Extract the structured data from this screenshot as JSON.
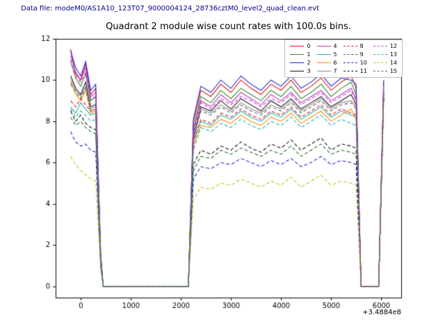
{
  "header": {
    "text": "Data file: modeM0/AS1A10_123T07_9000004124_28736cztM0_level2_quad_clean.evt"
  },
  "chart_data": {
    "type": "line",
    "title": "Quadrant 2 module wise count rates with 100.0s bins.",
    "xlabel": "",
    "ylabel": "",
    "x_offset": "+3.4884e8",
    "xlim": [
      -500,
      6400
    ],
    "ylim": [
      -0.55,
      12
    ],
    "x_ticks": [
      0,
      1000,
      2000,
      3000,
      4000,
      5000,
      6000
    ],
    "y_ticks": [
      0,
      2,
      4,
      6,
      8,
      10,
      12
    ],
    "grid": false,
    "legend_position": "upper right",
    "x": [
      -200,
      -100,
      0,
      100,
      200,
      300,
      400,
      450,
      2150,
      2250,
      2400,
      2600,
      2800,
      3000,
      3200,
      3400,
      3600,
      3800,
      4000,
      4200,
      4400,
      4600,
      4800,
      5000,
      5200,
      5400,
      5500,
      5600,
      5950,
      6050
    ],
    "series": [
      {
        "name": "0",
        "color": "#e3120b",
        "dash": false,
        "values": [
          11.5,
          10.3,
          10.0,
          10.8,
          9.3,
          9.6,
          1.5,
          0,
          0,
          7.9,
          9.5,
          9.2,
          9.8,
          9.4,
          10.0,
          9.6,
          9.3,
          9.8,
          9.5,
          10.0,
          9.4,
          9.7,
          10.1,
          9.5,
          9.9,
          10.2,
          9.6,
          0,
          0,
          9.9
        ]
      },
      {
        "name": "1",
        "color": "#2e8b2e",
        "dash": false,
        "values": [
          10.9,
          10.1,
          9.7,
          10.3,
          9.0,
          9.2,
          1.4,
          0,
          0,
          7.6,
          9.2,
          8.9,
          9.5,
          9.1,
          9.6,
          9.3,
          9.0,
          9.5,
          9.2,
          9.7,
          9.1,
          9.4,
          9.8,
          9.2,
          9.6,
          9.9,
          9.3,
          0,
          0,
          9.6
        ]
      },
      {
        "name": "2",
        "color": "#2222dd",
        "dash": false,
        "values": [
          11.4,
          10.6,
          10.2,
          10.9,
          9.5,
          9.8,
          1.6,
          0,
          0,
          8.1,
          9.7,
          9.4,
          10.0,
          9.6,
          10.2,
          9.8,
          9.5,
          10.0,
          9.7,
          10.2,
          9.6,
          9.9,
          10.3,
          9.7,
          10.1,
          10.0,
          9.8,
          0,
          0,
          10.0
        ]
      },
      {
        "name": "3",
        "color": "#111111",
        "dash": false,
        "values": [
          10.2,
          9.6,
          9.3,
          9.9,
          8.7,
          8.8,
          1.3,
          0,
          0,
          7.2,
          8.7,
          8.5,
          9.0,
          8.6,
          9.1,
          8.8,
          8.5,
          9.0,
          8.7,
          9.1,
          8.6,
          8.9,
          9.2,
          8.7,
          9.0,
          9.3,
          8.8,
          0,
          0,
          9.4
        ]
      },
      {
        "name": "4",
        "color": "#c232c2",
        "dash": false,
        "values": [
          11.2,
          10.4,
          10.0,
          10.6,
          9.2,
          9.4,
          1.4,
          0,
          0,
          7.5,
          9.0,
          8.7,
          9.3,
          8.9,
          9.4,
          9.1,
          8.8,
          9.3,
          9.0,
          9.4,
          8.9,
          9.2,
          9.5,
          9.0,
          9.3,
          9.6,
          9.1,
          0,
          0,
          9.7
        ]
      },
      {
        "name": "5",
        "color": "#20b2aa",
        "dash": false,
        "values": [
          8.7,
          8.4,
          8.9,
          8.6,
          8.3,
          8.4,
          1.2,
          0,
          0,
          7.0,
          8.0,
          7.8,
          8.3,
          8.1,
          8.5,
          8.2,
          8.0,
          8.4,
          8.2,
          8.6,
          8.1,
          8.4,
          8.7,
          8.2,
          8.5,
          8.3,
          8.2,
          0,
          0,
          9.3
        ]
      },
      {
        "name": "6",
        "color": "#ff8c00",
        "dash": false,
        "values": [
          9.9,
          9.3,
          9.0,
          9.5,
          8.4,
          8.5,
          1.2,
          0,
          0,
          6.8,
          7.8,
          7.7,
          8.1,
          7.9,
          8.3,
          8.0,
          7.8,
          8.2,
          8.0,
          8.4,
          7.9,
          8.2,
          8.5,
          8.0,
          8.3,
          8.6,
          8.1,
          0,
          0,
          9.2
        ]
      },
      {
        "name": "7",
        "color": "#8a8a8a",
        "dash": false,
        "values": [
          10.0,
          9.5,
          9.2,
          9.7,
          8.6,
          8.7,
          1.3,
          0,
          0,
          7.1,
          8.6,
          8.4,
          8.8,
          8.5,
          8.9,
          8.6,
          8.4,
          8.8,
          8.6,
          9.0,
          8.5,
          8.8,
          9.1,
          8.6,
          8.9,
          9.0,
          8.7,
          0,
          0,
          9.5
        ]
      },
      {
        "name": "8",
        "color": "#e3120b",
        "dash": true,
        "values": [
          9.0,
          8.7,
          9.1,
          8.8,
          8.5,
          8.6,
          1.2,
          0,
          0,
          7.0,
          8.1,
          7.9,
          8.4,
          8.2,
          8.6,
          8.3,
          8.1,
          8.5,
          8.3,
          8.7,
          8.2,
          8.5,
          8.8,
          8.3,
          8.6,
          8.4,
          8.3,
          0,
          0,
          9.3
        ]
      },
      {
        "name": "9",
        "color": "#1f6f1f",
        "dash": true,
        "values": [
          8.2,
          7.8,
          8.0,
          7.7,
          7.5,
          7.4,
          1.0,
          0,
          0,
          5.6,
          6.3,
          6.2,
          6.6,
          6.4,
          6.7,
          6.5,
          6.3,
          6.6,
          6.4,
          6.8,
          6.3,
          6.6,
          6.9,
          6.4,
          6.6,
          6.5,
          6.4,
          0,
          0,
          9.2
        ]
      },
      {
        "name": "10",
        "color": "#2222dd",
        "dash": true,
        "values": [
          7.5,
          7.0,
          6.8,
          6.9,
          6.6,
          6.5,
          0.9,
          0,
          0,
          5.2,
          5.8,
          5.7,
          6.0,
          5.9,
          6.2,
          6.0,
          5.8,
          6.1,
          5.9,
          6.2,
          5.8,
          6.0,
          6.3,
          5.9,
          6.1,
          6.0,
          5.9,
          0,
          0,
          9.1
        ]
      },
      {
        "name": "11",
        "color": "#111111",
        "dash": true,
        "values": [
          8.5,
          8.0,
          8.3,
          7.9,
          7.7,
          7.6,
          1.0,
          0,
          0,
          5.9,
          6.6,
          6.4,
          6.8,
          6.6,
          7.0,
          6.7,
          6.5,
          6.9,
          6.7,
          7.1,
          6.6,
          6.9,
          7.2,
          6.6,
          6.9,
          6.8,
          6.7,
          0,
          0,
          9.2
        ]
      },
      {
        "name": "12",
        "color": "#cc33cc",
        "dash": true,
        "values": [
          11.0,
          10.2,
          9.9,
          10.4,
          9.1,
          9.2,
          1.4,
          0,
          0,
          7.4,
          8.9,
          8.6,
          9.1,
          8.8,
          9.2,
          9.0,
          8.7,
          9.1,
          8.9,
          9.3,
          8.8,
          9.1,
          9.4,
          8.9,
          9.2,
          9.5,
          9.0,
          0,
          0,
          9.6
        ]
      },
      {
        "name": "13",
        "color": "#20b2aa",
        "dash": true,
        "values": [
          8.6,
          8.2,
          8.5,
          8.3,
          8.0,
          8.1,
          1.1,
          0,
          0,
          6.6,
          7.7,
          7.5,
          7.9,
          7.7,
          8.1,
          7.8,
          7.6,
          8.0,
          7.8,
          8.2,
          7.7,
          8.0,
          8.3,
          7.8,
          8.1,
          7.9,
          7.8,
          0,
          0,
          9.0
        ]
      },
      {
        "name": "14",
        "color": "#c9bf12",
        "dash": true,
        "values": [
          6.3,
          5.9,
          5.6,
          5.4,
          5.2,
          5.1,
          0.8,
          0,
          0,
          4.2,
          4.8,
          4.7,
          5.0,
          4.9,
          5.2,
          5.0,
          4.8,
          5.1,
          4.9,
          5.3,
          4.8,
          5.1,
          5.4,
          4.9,
          5.1,
          5.0,
          4.9,
          0,
          0,
          9.0
        ]
      },
      {
        "name": "15",
        "color": "#666666",
        "dash": true,
        "values": [
          9.8,
          9.4,
          9.1,
          9.6,
          8.5,
          8.6,
          1.3,
          0,
          0,
          7.1,
          8.5,
          8.3,
          8.7,
          8.4,
          8.8,
          8.5,
          8.3,
          8.7,
          8.5,
          8.9,
          8.4,
          8.7,
          9.0,
          8.5,
          8.8,
          8.9,
          8.6,
          0,
          0,
          9.4
        ]
      }
    ]
  }
}
